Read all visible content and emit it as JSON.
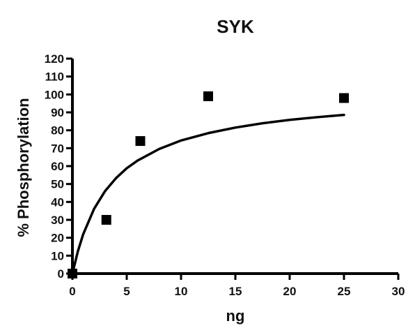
{
  "chart_data": {
    "type": "scatter",
    "title": "SYK",
    "xlabel": "ng",
    "ylabel": "% Phosphorylation",
    "xlim": [
      0,
      30
    ],
    "ylim": [
      0,
      120
    ],
    "x_ticks": [
      0,
      5,
      10,
      15,
      20,
      25,
      30
    ],
    "y_ticks": [
      0,
      10,
      20,
      30,
      40,
      50,
      60,
      70,
      80,
      90,
      100,
      110,
      120
    ],
    "grid": false,
    "legend": "none",
    "series": [
      {
        "type": "scatter",
        "marker": "square",
        "color": "#000000",
        "x": [
          0,
          3.125,
          6.25,
          12.5,
          25
        ],
        "y": [
          0,
          30,
          74,
          99,
          98
        ]
      },
      {
        "type": "line",
        "fit": "hyperbola",
        "color": "#000000",
        "x": [
          0,
          0.5,
          1,
          2,
          3,
          4,
          5,
          6,
          8,
          10,
          12.5,
          15,
          17.5,
          20,
          22.5,
          25
        ],
        "y": [
          0,
          12.4,
          22.1,
          36.2,
          46.0,
          53.2,
          58.8,
          63.1,
          69.6,
          74.3,
          78.4,
          81.5,
          83.9,
          85.8,
          87.3,
          88.6
        ]
      }
    ]
  }
}
